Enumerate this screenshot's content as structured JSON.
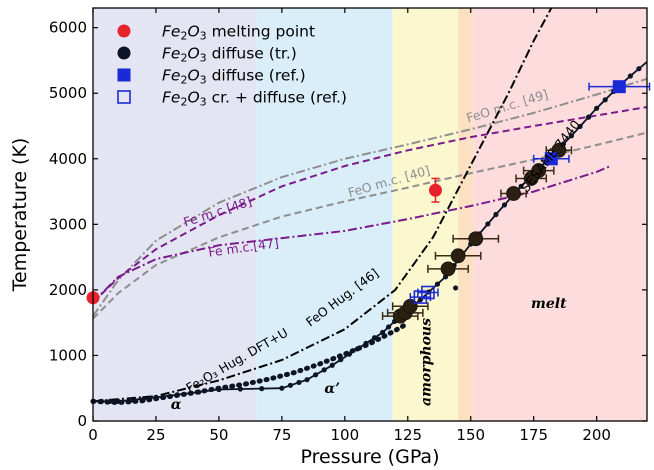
{
  "chart_data": {
    "type": "scatter",
    "xlabel": "Pressure (GPa)",
    "ylabel": "Temperature (K)",
    "xlim": [
      0,
      220
    ],
    "ylim": [
      0,
      6300
    ],
    "x_ticks": [
      "0",
      "25",
      "50",
      "75",
      "100",
      "125",
      "150",
      "175",
      "200"
    ],
    "y_ticks": [
      "0",
      "1000",
      "2000",
      "3000",
      "4000",
      "5000",
      "6000"
    ],
    "grid": false,
    "legend_position": "top-left",
    "legend": [
      {
        "label": "Fe2O3 melting point",
        "formula_base": "Fe",
        "sub": "2",
        "rest": "O",
        "sub2": "3",
        "suffix": " melting point",
        "marker": "circle",
        "color": "#e8222a"
      },
      {
        "label": "Fe2O3 diffuse (tr.)",
        "formula_base": "Fe",
        "sub": "2",
        "rest": "O",
        "sub2": "3",
        "suffix": " diffuse (tr.)",
        "marker": "circle",
        "color": "#0d1426"
      },
      {
        "label": "Fe2O3 diffuse (ref.)",
        "formula_base": "Fe",
        "sub": "2",
        "rest": "O",
        "sub2": "3",
        "suffix": " diffuse (ref.)",
        "marker": "square",
        "color": "#1a2ad6"
      },
      {
        "label": "Fe2O3 cr. + diffuse (ref.)",
        "formula_base": "Fe",
        "sub": "2",
        "rest": "O",
        "sub2": "3",
        "suffix": " cr. + diffuse (ref.)",
        "marker": "open-square",
        "color": "#1a2ad6"
      }
    ],
    "phase_regions": [
      {
        "label": "α",
        "x_range": [
          0,
          65
        ],
        "color": "#e3e6f2"
      },
      {
        "label": "α’",
        "x_range": [
          65,
          119
        ],
        "color": "#daeefa"
      },
      {
        "label": "amorphous",
        "x_range": [
          119,
          145
        ],
        "color": "#fbf8cf"
      },
      {
        "label": "",
        "x_range": [
          145,
          151
        ],
        "color": "#fce0c2"
      },
      {
        "label": "melt",
        "x_range": [
          151,
          220
        ],
        "color": "#fcdcdc"
      }
    ],
    "series": [
      {
        "name": "Fe2O3 melting point",
        "marker": "circle",
        "points": [
          {
            "x": 0,
            "y": 1880
          },
          {
            "x": 136,
            "y": 3520,
            "yerr": 180
          }
        ]
      },
      {
        "name": "Fe2O3 diffuse (tr.)",
        "marker": "circle-large",
        "points": [
          {
            "x": 122,
            "y": 1600,
            "xerr": 7
          },
          {
            "x": 124,
            "y": 1650,
            "xerr": 7
          },
          {
            "x": 126,
            "y": 1750,
            "xerr": 7
          },
          {
            "x": 141,
            "y": 2320,
            "xerr": 8
          },
          {
            "x": 145,
            "y": 2520,
            "xerr": 9
          },
          {
            "x": 152,
            "y": 2780,
            "xerr": 9
          },
          {
            "x": 167,
            "y": 3470,
            "xerr": 5
          },
          {
            "x": 174,
            "y": 3700,
            "xerr": 6
          },
          {
            "x": 177,
            "y": 3820,
            "xerr": 6
          },
          {
            "x": 185,
            "y": 4130,
            "xerr": 5
          }
        ]
      },
      {
        "name": "Fe2O3 diffuse (ref.)",
        "marker": "square",
        "points": [
          {
            "x": 182,
            "y": 4000,
            "xerr": 7
          },
          {
            "x": 209,
            "y": 5100,
            "xerr": 12
          }
        ]
      },
      {
        "name": "Fe2O3 cr. + diffuse (ref.)",
        "marker": "open-square",
        "points": [
          {
            "x": 130,
            "y": 1890,
            "xerr": 4
          },
          {
            "x": 133,
            "y": 1960,
            "xerr": 4
          }
        ]
      }
    ],
    "extra_points": [
      {
        "x": 144,
        "y": 2030
      }
    ],
    "curves": [
      {
        "label": "FeO m.c. [49]",
        "style": "dashdot",
        "color": "#8e8e8e",
        "points": [
          [
            0,
            1600
          ],
          [
            10,
            2150
          ],
          [
            25,
            2750
          ],
          [
            50,
            3330
          ],
          [
            75,
            3720
          ],
          [
            100,
            4000
          ],
          [
            125,
            4220
          ],
          [
            150,
            4450
          ],
          [
            175,
            4700
          ],
          [
            200,
            4980
          ],
          [
            220,
            5220
          ]
        ],
        "label_pos": {
          "x": 165,
          "y": 4740
        }
      },
      {
        "label": "FeO m.c. [40]",
        "style": "dashed",
        "color": "#8e8e8e",
        "points": [
          [
            0,
            1560
          ],
          [
            10,
            1950
          ],
          [
            25,
            2380
          ],
          [
            50,
            2800
          ],
          [
            75,
            3120
          ],
          [
            100,
            3350
          ],
          [
            125,
            3560
          ],
          [
            150,
            3780
          ],
          [
            180,
            4030
          ],
          [
            200,
            4210
          ],
          [
            220,
            4400
          ]
        ],
        "label_pos": {
          "x": 118,
          "y": 3590
        }
      },
      {
        "label": "Fe m.c.[48]",
        "style": "dashed",
        "color": "#7a1a8c",
        "points": [
          [
            0,
            1810
          ],
          [
            10,
            2180
          ],
          [
            25,
            2620
          ],
          [
            50,
            3140
          ],
          [
            75,
            3580
          ],
          [
            100,
            3890
          ],
          [
            125,
            4130
          ],
          [
            150,
            4330
          ],
          [
            175,
            4500
          ],
          [
            200,
            4660
          ],
          [
            220,
            4790
          ]
        ],
        "label_pos": {
          "x": 50,
          "y": 3130
        }
      },
      {
        "label": "Fe m.c.[47]",
        "style": "dashdot",
        "color": "#7a1a8c",
        "points": [
          [
            0,
            1810
          ],
          [
            10,
            2200
          ],
          [
            25,
            2470
          ],
          [
            50,
            2680
          ],
          [
            75,
            2790
          ],
          [
            100,
            2900
          ],
          [
            125,
            3080
          ],
          [
            150,
            3280
          ],
          [
            175,
            3500
          ],
          [
            200,
            3800
          ],
          [
            205,
            3880
          ]
        ],
        "label_pos": {
          "x": 60,
          "y": 2580
        }
      },
      {
        "label": "FeO Hug. [46]",
        "style": "dashdot",
        "color": "#000000",
        "points": [
          [
            0,
            300
          ],
          [
            25,
            380
          ],
          [
            50,
            620
          ],
          [
            75,
            930
          ],
          [
            100,
            1400
          ],
          [
            120,
            2000
          ],
          [
            135,
            2800
          ],
          [
            150,
            3900
          ],
          [
            165,
            5000
          ],
          [
            175,
            5800
          ],
          [
            182,
            6300
          ]
        ],
        "label_pos": {
          "x": 100,
          "y": 1830
        }
      },
      {
        "label": "Fe₂O₃ Hug. DFT+U",
        "style": "dotted-markers",
        "color": "#0d1426",
        "points": [
          [
            0,
            300
          ],
          [
            10,
            280
          ],
          [
            20,
            310
          ],
          [
            30,
            370
          ],
          [
            40,
            430
          ],
          [
            50,
            500
          ],
          [
            60,
            560
          ],
          [
            70,
            640
          ],
          [
            80,
            740
          ],
          [
            90,
            870
          ],
          [
            100,
            1020
          ],
          [
            110,
            1180
          ],
          [
            120,
            1380
          ],
          [
            125,
            1490
          ]
        ],
        "label_pos": {
          "x": 58,
          "y": 870
        }
      },
      {
        "label": "SESAME 7440",
        "style": "solid-markers",
        "color": "#0d1426",
        "points": [
          [
            0,
            300
          ],
          [
            10,
            300
          ],
          [
            25,
            360
          ],
          [
            50,
            480
          ],
          [
            75,
            500
          ],
          [
            85,
            630
          ],
          [
            95,
            850
          ],
          [
            105,
            1100
          ],
          [
            115,
            1350
          ],
          [
            122,
            1600
          ],
          [
            130,
            1850
          ],
          [
            140,
            2200
          ],
          [
            150,
            2700
          ],
          [
            160,
            3150
          ],
          [
            170,
            3580
          ],
          [
            180,
            3960
          ],
          [
            190,
            4350
          ],
          [
            200,
            4770
          ],
          [
            210,
            5150
          ],
          [
            220,
            5480
          ]
        ],
        "label_pos": {
          "x": 183,
          "y": 4000
        }
      }
    ]
  },
  "region_labels": {
    "alpha": "α",
    "alpha_prime": "α’",
    "amorphous": "amorphous",
    "melt": "melt"
  }
}
